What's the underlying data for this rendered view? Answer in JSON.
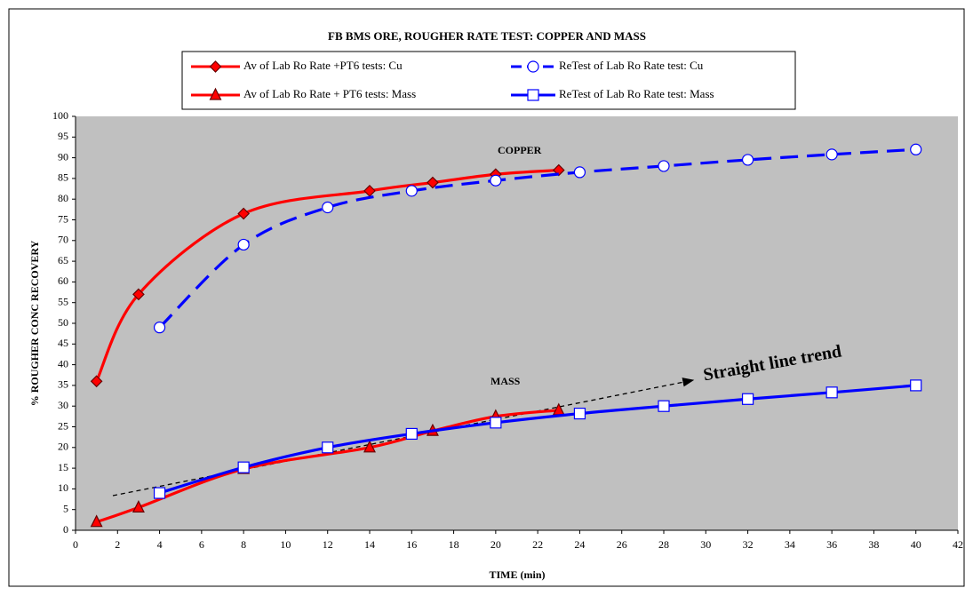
{
  "chart_data": {
    "type": "line",
    "title": "FB BMS ORE, ROUGHER RATE TEST: COPPER AND MASS",
    "x_label": "TIME (min)",
    "y_label": "% ROUGHER CONC RECOVERY",
    "annotations": [
      "COPPER",
      "MASS",
      "Straight line trend"
    ],
    "xlim": [
      0,
      42
    ],
    "xticks": [
      0,
      2,
      4,
      6,
      8,
      10,
      12,
      14,
      16,
      18,
      20,
      22,
      24,
      26,
      28,
      30,
      32,
      34,
      36,
      38,
      40,
      42
    ],
    "ylim": [
      0,
      100
    ],
    "yticks": [
      0,
      5,
      10,
      15,
      20,
      25,
      30,
      35,
      40,
      45,
      50,
      55,
      60,
      65,
      70,
      75,
      80,
      85,
      90,
      95,
      100
    ],
    "grid": false,
    "series": [
      {
        "name": "Av of Lab Ro Rate +PT6 tests: Cu",
        "color": "#ff0000",
        "marker": "diamond",
        "dash": "solid",
        "x": [
          1,
          3,
          8,
          14,
          17,
          20,
          23
        ],
        "values": [
          36,
          57,
          76.5,
          82,
          84,
          86,
          87
        ]
      },
      {
        "name": "ReTest of Lab Ro Rate test: Cu",
        "color": "#0000ff",
        "marker": "circle",
        "dash": "dashed",
        "x": [
          4,
          8,
          12,
          16,
          20,
          24,
          28,
          32,
          36,
          40
        ],
        "values": [
          49,
          69,
          78,
          82,
          84.5,
          86.5,
          88,
          89.5,
          90.8,
          92
        ]
      },
      {
        "name": "Av of Lab Ro Rate + PT6 tests: Mass",
        "color": "#ff0000",
        "marker": "triangle",
        "dash": "solid",
        "x": [
          1,
          3,
          8,
          14,
          17,
          20,
          23
        ],
        "values": [
          2,
          5.5,
          14.8,
          20,
          24,
          27.5,
          29
        ]
      },
      {
        "name": "ReTest of Lab Ro Rate test: Mass",
        "color": "#0000ff",
        "marker": "square",
        "dash": "solid",
        "x": [
          4,
          8,
          12,
          16,
          20,
          24,
          28,
          32,
          36,
          40
        ],
        "values": [
          9,
          15.2,
          20,
          23.3,
          26,
          28.2,
          30,
          31.7,
          33.3,
          35
        ]
      }
    ]
  }
}
